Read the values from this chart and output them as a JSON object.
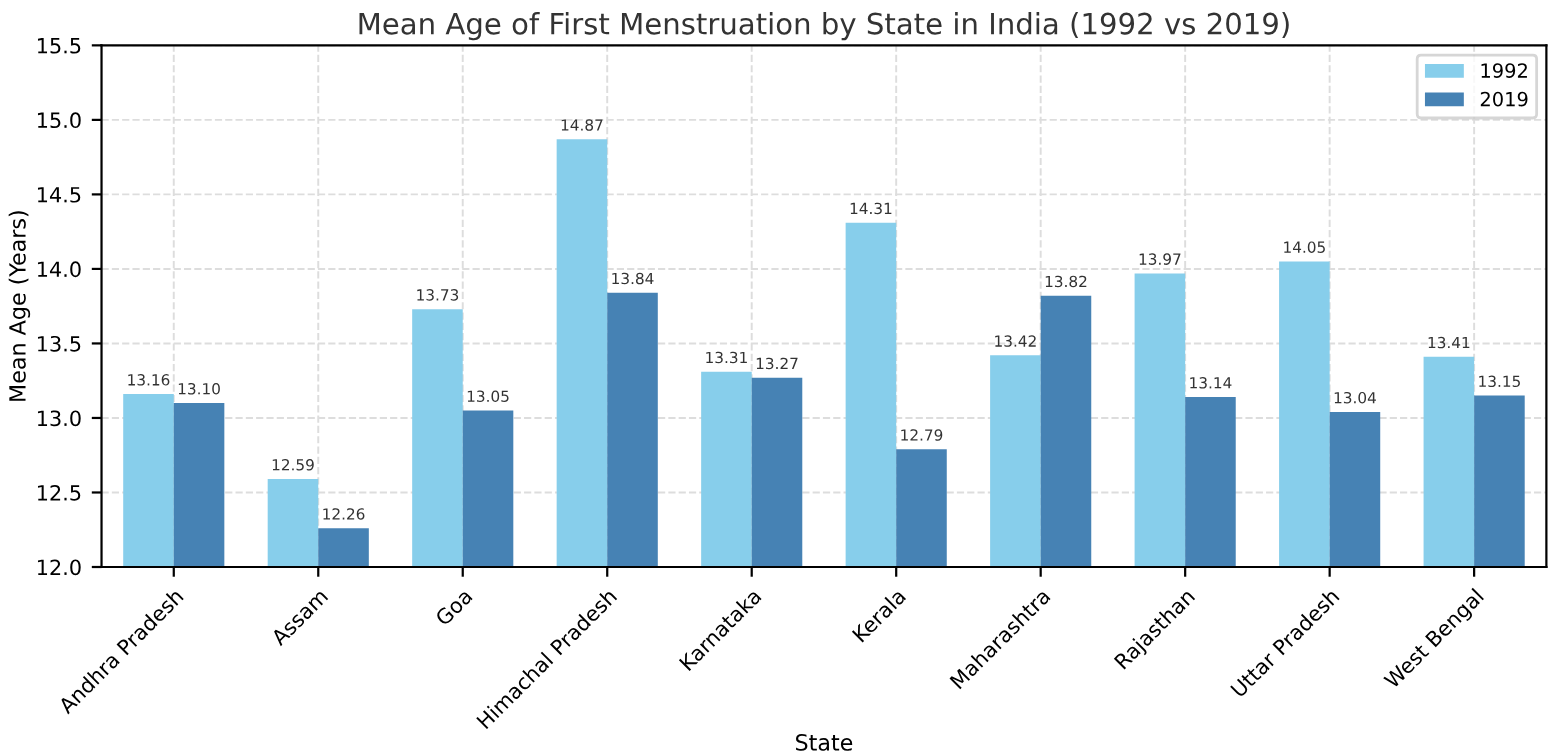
{
  "chart_data": {
    "type": "bar",
    "title": "Mean Age of First Menstruation by State in India (1992 vs 2019)",
    "xlabel": "State",
    "ylabel": "Mean Age (Years)",
    "categories": [
      "Andhra Pradesh",
      "Assam",
      "Goa",
      "Himachal Pradesh",
      "Karnataka",
      "Kerala",
      "Maharashtra",
      "Rajasthan",
      "Uttar Pradesh",
      "West Bengal"
    ],
    "series": [
      {
        "name": "1992",
        "color": "#87ceeb",
        "values": [
          13.16,
          12.59,
          13.73,
          14.87,
          13.31,
          14.31,
          13.42,
          13.97,
          14.05,
          13.41
        ],
        "value_labels": [
          "13.16",
          "12.59",
          "13.73",
          "14.87",
          "13.31",
          "14.31",
          "13.42",
          "13.97",
          "14.05",
          "13.41"
        ]
      },
      {
        "name": "2019",
        "color": "#4682b4",
        "values": [
          13.1,
          12.26,
          13.05,
          13.84,
          13.27,
          12.79,
          13.82,
          13.14,
          13.04,
          13.15
        ],
        "value_labels": [
          "13.10",
          "12.26",
          "13.05",
          "13.84",
          "13.27",
          "12.79",
          "13.82",
          "13.14",
          "13.04",
          "13.15"
        ]
      }
    ],
    "ylim": [
      12.0,
      15.5
    ],
    "yticks": [
      {
        "value": 12,
        "label": "12.0"
      },
      12.5,
      {
        "value": 13,
        "label": "13.0"
      },
      13.5,
      {
        "value": 14,
        "label": "14.0"
      },
      14.5,
      {
        "value": 15,
        "label": "15.0"
      },
      15.5
    ],
    "grid": true,
    "legend": "top right"
  }
}
